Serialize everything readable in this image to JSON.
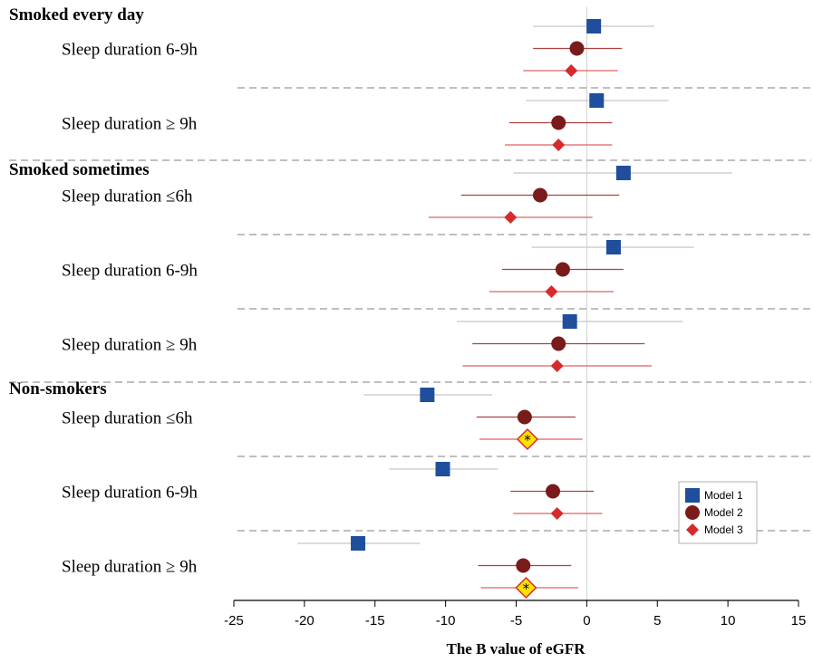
{
  "chart_data": {
    "type": "forest",
    "xlabel": "The B value of eGFR",
    "xlim": [
      -25,
      15
    ],
    "xticks": [
      -25,
      -20,
      -15,
      -10,
      -5,
      0,
      5,
      10,
      15
    ],
    "reference_line": 0,
    "legend_position": "right",
    "series": [
      {
        "name": "Model 1",
        "marker": "square",
        "color": "#1f4e9c",
        "ci_color": "#c8c8c8"
      },
      {
        "name": "Model 2",
        "marker": "circle",
        "color": "#7a1b1b",
        "ci_color": "#b04040"
      },
      {
        "name": "Model 3",
        "marker": "diamond",
        "color": "#d62b2b",
        "ci_color": "#e06060"
      }
    ],
    "groups": [
      {
        "label": "Smoked every day",
        "rows": [
          {
            "label": "Sleep duration  6-9h",
            "values": [
              {
                "est": 0.5,
                "lo": -3.8,
                "hi": 4.8
              },
              {
                "est": -0.7,
                "lo": -3.8,
                "hi": 2.5
              },
              {
                "est": -1.1,
                "lo": -4.5,
                "hi": 2.2
              }
            ]
          },
          {
            "label": "Sleep duration  ≥ 9h",
            "values": [
              {
                "est": 0.7,
                "lo": -4.3,
                "hi": 5.8
              },
              {
                "est": -2.0,
                "lo": -5.5,
                "hi": 1.8
              },
              {
                "est": -2.0,
                "lo": -5.8,
                "hi": 1.8
              }
            ]
          }
        ]
      },
      {
        "label": "Smoked sometimes",
        "rows": [
          {
            "label": "Sleep duration  ≤6h",
            "values": [
              {
                "est": 2.6,
                "lo": -5.2,
                "hi": 10.3
              },
              {
                "est": -3.3,
                "lo": -8.9,
                "hi": 2.3
              },
              {
                "est": -5.4,
                "lo": -11.2,
                "hi": 0.4
              }
            ]
          },
          {
            "label": "Sleep duration  6-9h",
            "values": [
              {
                "est": 1.9,
                "lo": -3.9,
                "hi": 7.6
              },
              {
                "est": -1.7,
                "lo": -6.0,
                "hi": 2.6
              },
              {
                "est": -2.5,
                "lo": -6.9,
                "hi": 1.9
              }
            ]
          },
          {
            "label": "Sleep duration  ≥ 9h",
            "values": [
              {
                "est": -1.2,
                "lo": -9.2,
                "hi": 6.8
              },
              {
                "est": -2.0,
                "lo": -8.1,
                "hi": 4.1
              },
              {
                "est": -2.1,
                "lo": -8.8,
                "hi": 4.6
              }
            ]
          }
        ]
      },
      {
        "label": "Non-smokers",
        "rows": [
          {
            "label": "Sleep duration  ≤6h",
            "values": [
              {
                "est": -11.3,
                "lo": -15.8,
                "hi": -6.7
              },
              {
                "est": -4.4,
                "lo": -7.8,
                "hi": -0.8
              },
              {
                "est": -4.2,
                "lo": -7.6,
                "hi": -0.3,
                "significant": true,
                "note": "*"
              }
            ]
          },
          {
            "label": "Sleep duration  6-9h",
            "values": [
              {
                "est": -10.2,
                "lo": -14.0,
                "hi": -6.3
              },
              {
                "est": -2.4,
                "lo": -5.4,
                "hi": 0.5
              },
              {
                "est": -2.1,
                "lo": -5.2,
                "hi": 1.1
              }
            ]
          },
          {
            "label": "Sleep duration  ≥ 9h",
            "values": [
              {
                "est": -16.2,
                "lo": -20.5,
                "hi": -11.8
              },
              {
                "est": -4.5,
                "lo": -7.7,
                "hi": -1.1
              },
              {
                "est": -4.3,
                "lo": -7.5,
                "hi": -0.6,
                "significant": true,
                "note": "*"
              }
            ]
          }
        ]
      }
    ]
  }
}
